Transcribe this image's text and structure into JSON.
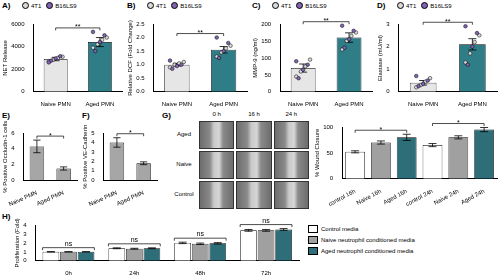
{
  "chart_data": [
    {
      "panel_label": "A)",
      "type": "bar",
      "categories": [
        "Naive PMN",
        "Aged PMN"
      ],
      "values": [
        2900,
        4400
      ],
      "errors": [
        150,
        400
      ],
      "colors": [
        "#e6e6e6",
        "#2e7d87"
      ],
      "y_label": "NET Release",
      "ylim": [
        0,
        6000
      ],
      "yticks": [
        0,
        2000,
        4000,
        6000
      ],
      "grid": false,
      "legend": "top",
      "point_series": [
        {
          "name": "4T1",
          "color": "#d9d9d9",
          "values": [
            [
              2700,
              2850,
              3000,
              3100
            ],
            [
              3900,
              4200,
              4600,
              4800
            ]
          ]
        },
        {
          "name": "B16LS9",
          "color": "#8064b4",
          "values": [
            [
              2750,
              2950,
              3150,
              2600
            ],
            [
              3600,
              4400,
              5000,
              5300
            ]
          ]
        }
      ],
      "significance": [
        {
          "label": "**",
          "between": [
            "Naive PMN",
            "Aged PMN"
          ]
        }
      ]
    },
    {
      "panel_label": "B)",
      "type": "bar",
      "categories": [
        "Naive PMN",
        "Aged PMN"
      ],
      "values": [
        1.0,
        1.55
      ],
      "errors": [
        0.05,
        0.12
      ],
      "colors": [
        "#e6e6e6",
        "#2e7d87"
      ],
      "y_label": "Relative DCF (Fold Change)",
      "ylim": [
        0,
        2.5
      ],
      "yticks": [
        {
          "value": 0,
          "label": "0.0"
        },
        {
          "value": 0.5,
          "label": "0.5"
        },
        {
          "value": 1,
          "label": "1.0"
        },
        {
          "value": 1.5,
          "label": "1.5"
        },
        {
          "value": 2,
          "label": "2.0"
        },
        {
          "value": 2.5,
          "label": "2.5"
        }
      ],
      "grid": false,
      "legend": "top",
      "point_series": [
        {
          "name": "4T1",
          "color": "#d9d9d9",
          "values": [
            [
              0.9,
              1.0,
              1.05,
              1.1
            ],
            [
              1.3,
              1.45,
              1.6,
              1.7
            ]
          ]
        },
        {
          "name": "B16LS9",
          "color": "#8064b4",
          "values": [
            [
              0.85,
              0.95,
              1.0,
              1.15
            ],
            [
              1.25,
              1.5,
              1.8,
              2.0
            ]
          ]
        }
      ],
      "significance": [
        {
          "label": "**",
          "between": [
            "Naive PMN",
            "Aged PMN"
          ]
        }
      ]
    },
    {
      "panel_label": "C)",
      "type": "bar",
      "categories": [
        "Naive PMN",
        "Aged PMN"
      ],
      "values": [
        70,
        160
      ],
      "errors": [
        12,
        14
      ],
      "colors": [
        "#e6e6e6",
        "#2e7d87"
      ],
      "y_label": "MMP-9 (ng/ml)",
      "ylim": [
        0,
        200
      ],
      "yticks": [
        0,
        50,
        100,
        150,
        200
      ],
      "grid": false,
      "legend": "top",
      "point_series": [
        {
          "name": "4T1",
          "color": "#d9d9d9",
          "values": [
            [
              45,
              60,
              75,
              95
            ],
            [
              125,
              150,
              165,
              175
            ]
          ]
        },
        {
          "name": "B16LS9",
          "color": "#8064b4",
          "values": [
            [
              40,
              65,
              80,
              90
            ],
            [
              130,
              155,
              180,
              195
            ]
          ]
        }
      ],
      "significance": [
        {
          "label": "**",
          "between": [
            "Naive PMN",
            "Aged PMN"
          ]
        }
      ]
    },
    {
      "panel_label": "D)",
      "type": "bar",
      "categories": [
        "Naive PMN",
        "Aged PMN"
      ],
      "values": [
        0.4,
        2.1
      ],
      "errors": [
        0.1,
        0.25
      ],
      "colors": [
        "#e6e6e6",
        "#2e7d87"
      ],
      "y_label": "Elastase (mU/ml)",
      "ylim": [
        0,
        3
      ],
      "yticks": [
        0,
        1,
        2,
        3
      ],
      "grid": false,
      "legend": "top",
      "point_series": [
        {
          "name": "4T1",
          "color": "#d9d9d9",
          "values": [
            [
              0.2,
              0.3,
              0.45,
              0.6
            ],
            [
              1.3,
              1.7,
              2.2,
              2.5
            ]
          ]
        },
        {
          "name": "B16LS9",
          "color": "#8064b4",
          "values": [
            [
              0.25,
              0.35,
              0.5,
              0.7
            ],
            [
              1.2,
              2.0,
              2.6,
              2.9
            ]
          ]
        }
      ],
      "significance": [
        {
          "label": "**",
          "between": [
            "Naive PMN",
            "Aged PMN"
          ]
        }
      ]
    },
    {
      "panel_label": "E)",
      "type": "bar",
      "categories": [
        "Naive PMN",
        "Aged PMN"
      ],
      "values": [
        4.3,
        1.5
      ],
      "errors": [
        0.8,
        0.2
      ],
      "colors": [
        "#a6a6a6",
        "#a6a6a6"
      ],
      "y_label": "% Positive Occludin-1 cells",
      "ylim": [
        0,
        6
      ],
      "yticks": [
        0,
        2,
        4,
        6
      ],
      "grid": false,
      "significance": [
        {
          "label": "*",
          "between": [
            "Naive PMN",
            "Aged PMN"
          ]
        }
      ]
    },
    {
      "panel_label": "F)",
      "type": "bar",
      "categories": [
        "Naive PMN",
        "Aged PMN"
      ],
      "values": [
        4.0,
        1.8
      ],
      "errors": [
        0.5,
        0.15
      ],
      "colors": [
        "#a6a6a6",
        "#a6a6a6"
      ],
      "y_label": "% Positive VE-Cadherin",
      "ylim": [
        0,
        5
      ],
      "yticks": [
        0,
        1,
        2,
        3,
        4,
        5
      ],
      "grid": false,
      "significance": [
        {
          "label": "*",
          "between": [
            "Naive PMN",
            "Aged PMN"
          ]
        }
      ]
    },
    {
      "panel_label": "G)",
      "type": "bar",
      "categories": [
        "control 16h",
        "Naive 16h",
        "Aged 16h",
        "control 24h",
        "Naive 24h",
        "Aged 24h"
      ],
      "values": [
        52,
        70,
        80,
        65,
        80,
        95
      ],
      "errors": [
        2,
        3,
        6,
        3,
        3,
        4
      ],
      "colors": [
        "#ffffff",
        "#a0a0a0",
        "#2e6e78",
        "#ffffff",
        "#a0a0a0",
        "#2e6e78"
      ],
      "y_label": "% Wound Closure",
      "ylim": [
        0,
        100
      ],
      "yticks": [
        0,
        50,
        100
      ],
      "grid": false,
      "images": {
        "rows": [
          "Aged",
          "Naive",
          "Control"
        ],
        "columns": [
          "0 h",
          "16 h",
          "24 h"
        ]
      },
      "significance": [
        {
          "label": "*",
          "between": [
            "control 16h",
            "Aged 16h"
          ]
        },
        {
          "label": "*",
          "between": [
            "control 24h",
            "Aged 24h"
          ]
        }
      ]
    },
    {
      "panel_label": "H)",
      "type": "bar",
      "categories": [
        "0h",
        "24h",
        "48h",
        "72h"
      ],
      "series": [
        {
          "name": "Control media",
          "color": "#ffffff",
          "values": [
            1.0,
            1.4,
            2.0,
            3.4
          ],
          "errors": [
            0.02,
            0.05,
            0.08,
            0.1
          ]
        },
        {
          "name": "Naive neutrophil conditioned media",
          "color": "#a0a0a0",
          "values": [
            1.0,
            1.35,
            1.9,
            3.4
          ],
          "errors": [
            0.02,
            0.05,
            0.08,
            0.1
          ]
        },
        {
          "name": "Aged neutrophil conditioned media",
          "color": "#2e6e78",
          "values": [
            1.0,
            1.4,
            1.95,
            3.5
          ],
          "errors": [
            0.02,
            0.05,
            0.08,
            0.1
          ]
        }
      ],
      "y_label": "Proliferation (Fold)",
      "ylim": [
        0,
        4
      ],
      "yticks": [
        0,
        1,
        2,
        3,
        4
      ],
      "grid": false,
      "legend": "right",
      "significance": [
        {
          "label": "ns",
          "between": [
            "0h"
          ]
        },
        {
          "label": "ns",
          "between": [
            "24h"
          ]
        },
        {
          "label": "ns",
          "between": [
            "48h"
          ]
        },
        {
          "label": "ns",
          "between": [
            "72h"
          ]
        }
      ]
    }
  ]
}
